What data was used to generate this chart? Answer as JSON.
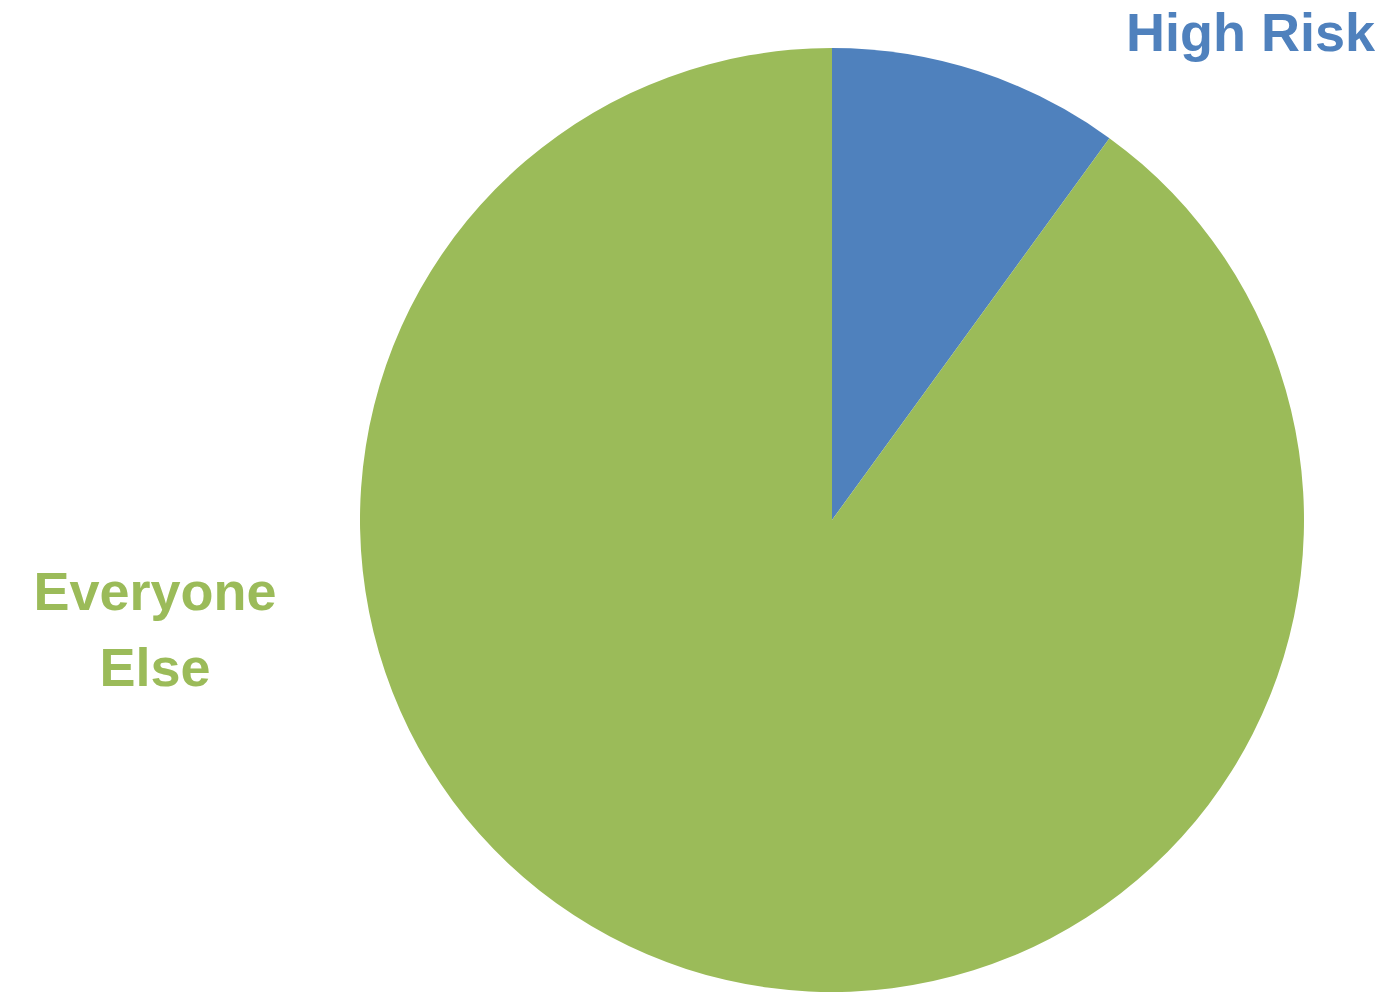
{
  "chart_data": {
    "type": "pie",
    "categories": [
      "High Risk",
      "Everyone Else"
    ],
    "values": [
      10,
      90
    ],
    "colors": [
      "#4f81bd",
      "#9bbb59"
    ],
    "legend": false
  }
}
